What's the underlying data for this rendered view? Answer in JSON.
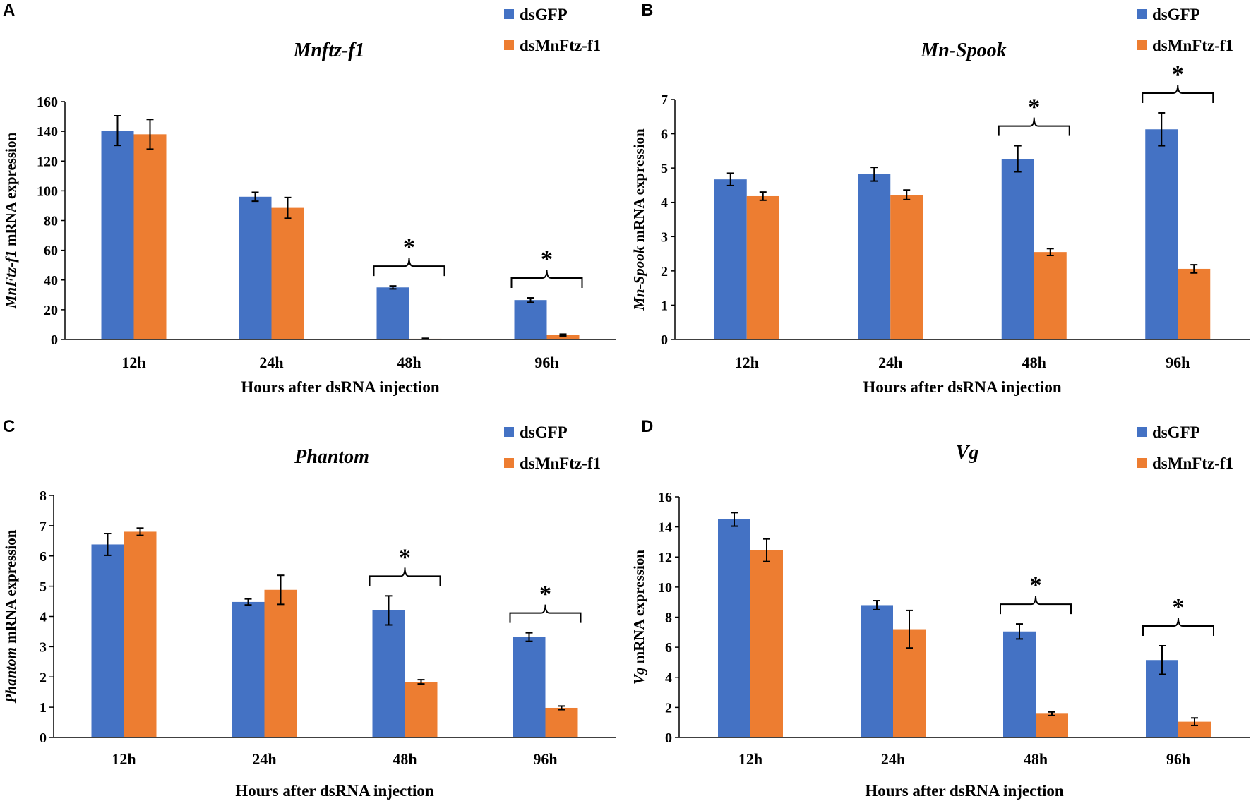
{
  "figure": {
    "legend": [
      {
        "name": "dsGFP",
        "color": "#4472C4"
      },
      {
        "name": "dsMnFtz-f1",
        "color": "#ED7D31"
      }
    ]
  },
  "chart_data": [
    {
      "panel": "A",
      "type": "bar",
      "title": "Mnftz-f1",
      "ylabel_italic": "MnFtz-f1",
      "ylabel_rest": " mRNA expression",
      "xlabel": "Hours after dsRNA injection",
      "categories": [
        "12h",
        "24h",
        "48h",
        "96h"
      ],
      "ylim": [
        0,
        160
      ],
      "yticks": [
        0,
        20,
        40,
        60,
        80,
        100,
        120,
        140,
        160
      ],
      "series": [
        {
          "name": "dsGFP",
          "values": [
            140.5,
            96,
            35,
            26.5
          ],
          "errors": [
            10,
            3,
            1,
            1.5
          ]
        },
        {
          "name": "dsMnFtz-f1",
          "values": [
            138,
            88.5,
            0.5,
            3
          ],
          "errors": [
            10,
            7,
            0.3,
            0.6
          ]
        }
      ],
      "significance": [
        {
          "category": "48h",
          "label": "*"
        },
        {
          "category": "96h",
          "label": "*"
        }
      ]
    },
    {
      "panel": "B",
      "type": "bar",
      "title": "Mn-Spook",
      "ylabel_italic": "Mn-Spook",
      "ylabel_rest": " mRNA expression",
      "xlabel": "Hours after dsRNA injection",
      "categories": [
        "12h",
        "24h",
        "48h",
        "96h"
      ],
      "ylim": [
        0,
        7
      ],
      "yticks": [
        0,
        1,
        2,
        3,
        4,
        5,
        6,
        7
      ],
      "series": [
        {
          "name": "dsGFP",
          "values": [
            4.67,
            4.82,
            5.27,
            6.13
          ],
          "errors": [
            0.18,
            0.2,
            0.38,
            0.48
          ]
        },
        {
          "name": "dsMnFtz-f1",
          "values": [
            4.18,
            4.22,
            2.55,
            2.06
          ],
          "errors": [
            0.12,
            0.14,
            0.1,
            0.12
          ]
        }
      ],
      "significance": [
        {
          "category": "48h",
          "label": "*"
        },
        {
          "category": "96h",
          "label": "*"
        }
      ]
    },
    {
      "panel": "C",
      "type": "bar",
      "title": "Phantom",
      "ylabel_italic": "Phantom",
      "ylabel_rest": " mRNA expression",
      "xlabel": "Hours after dsRNA injection",
      "categories": [
        "12h",
        "24h",
        "48h",
        "96h"
      ],
      "ylim": [
        0,
        8
      ],
      "yticks": [
        0,
        1,
        2,
        3,
        4,
        5,
        6,
        7,
        8
      ],
      "series": [
        {
          "name": "dsGFP",
          "values": [
            6.38,
            4.48,
            4.2,
            3.32
          ],
          "errors": [
            0.36,
            0.1,
            0.48,
            0.14
          ]
        },
        {
          "name": "dsMnFtz-f1",
          "values": [
            6.8,
            4.88,
            1.84,
            0.98
          ],
          "errors": [
            0.12,
            0.48,
            0.07,
            0.06
          ]
        }
      ],
      "significance": [
        {
          "category": "48h",
          "label": "*"
        },
        {
          "category": "96h",
          "label": "*"
        }
      ]
    },
    {
      "panel": "D",
      "type": "bar",
      "title": "Vg",
      "ylabel_italic": "Vg",
      "ylabel_rest": " mRNA expression",
      "xlabel": "Hours after dsRNA injection",
      "categories": [
        "12h",
        "24h",
        "48h",
        "96h"
      ],
      "ylim": [
        0,
        16
      ],
      "yticks": [
        0,
        2,
        4,
        6,
        8,
        10,
        12,
        14,
        16
      ],
      "series": [
        {
          "name": "dsGFP",
          "values": [
            14.5,
            8.8,
            7.05,
            5.15
          ],
          "errors": [
            0.45,
            0.3,
            0.5,
            0.95
          ]
        },
        {
          "name": "dsMnFtz-f1",
          "values": [
            12.45,
            7.2,
            1.58,
            1.05
          ],
          "errors": [
            0.75,
            1.25,
            0.12,
            0.25
          ]
        }
      ],
      "significance": [
        {
          "category": "48h",
          "label": "*"
        },
        {
          "category": "96h",
          "label": "*"
        }
      ]
    }
  ]
}
